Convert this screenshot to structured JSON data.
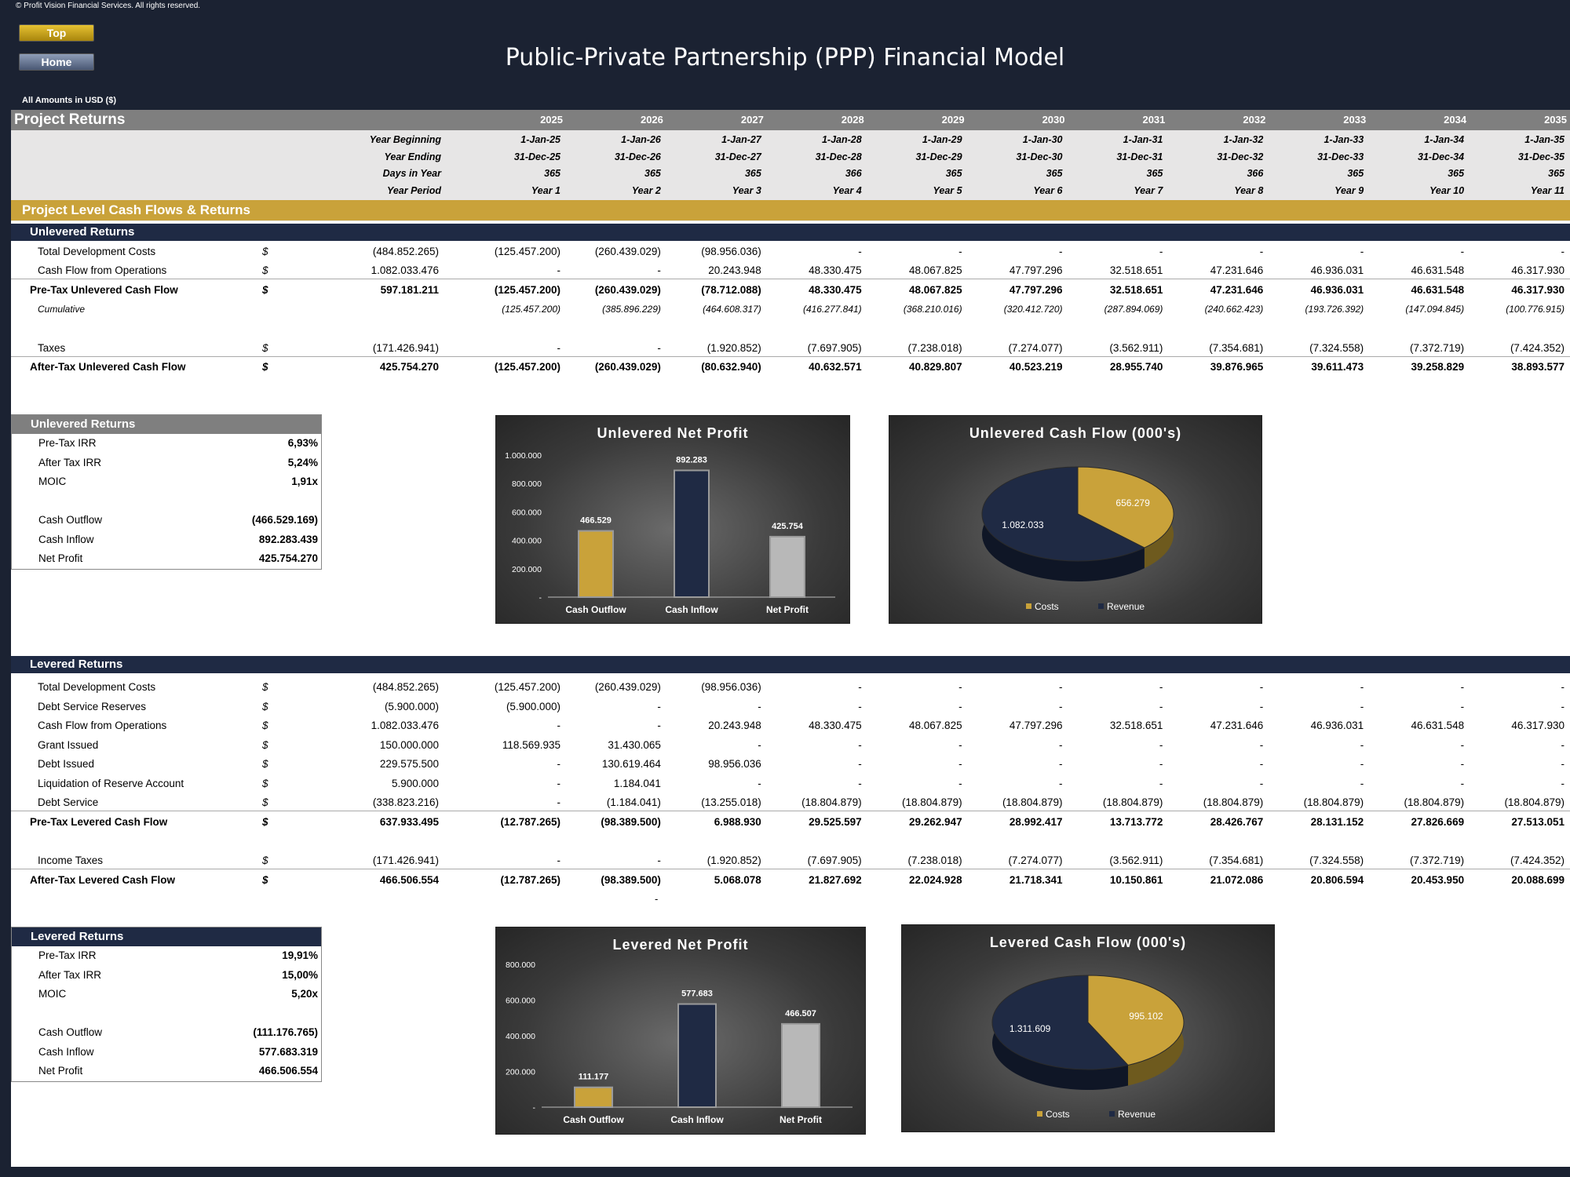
{
  "copyright": "© Profit Vision Financial Services. All rights reserved.",
  "nav": {
    "top_label": "Top",
    "home_label": "Home"
  },
  "title": "Public-Private Partnership (PPP) Financial Model",
  "amounts_note": "All Amounts in  USD ($)",
  "section_title": "Project Returns",
  "years": [
    "2025",
    "2026",
    "2027",
    "2028",
    "2029",
    "2030",
    "2031",
    "2032",
    "2033",
    "2034",
    "2035"
  ],
  "date_rows": [
    {
      "label": "Year Beginning",
      "values": [
        "1-Jan-25",
        "1-Jan-26",
        "1-Jan-27",
        "1-Jan-28",
        "1-Jan-29",
        "1-Jan-30",
        "1-Jan-31",
        "1-Jan-32",
        "1-Jan-33",
        "1-Jan-34",
        "1-Jan-35"
      ]
    },
    {
      "label": "Year Ending",
      "values": [
        "31-Dec-25",
        "31-Dec-26",
        "31-Dec-27",
        "31-Dec-28",
        "31-Dec-29",
        "31-Dec-30",
        "31-Dec-31",
        "31-Dec-32",
        "31-Dec-33",
        "31-Dec-34",
        "31-Dec-35"
      ]
    },
    {
      "label": "Days in Year",
      "values": [
        "365",
        "365",
        "365",
        "366",
        "365",
        "365",
        "365",
        "366",
        "365",
        "365",
        "365"
      ]
    },
    {
      "label": "Year Period",
      "values": [
        "Year 1",
        "Year 2",
        "Year 3",
        "Year 4",
        "Year 5",
        "Year 6",
        "Year 7",
        "Year 8",
        "Year 9",
        "Year 10",
        "Year 11"
      ]
    }
  ],
  "gold_title": "Project Level Cash Flows & Returns",
  "unlevered": {
    "title": "Unlevered Returns",
    "rows": [
      {
        "label": "Total Development Costs",
        "cur": "$",
        "total": "(484.852.265)",
        "values": [
          "(125.457.200)",
          "(260.439.029)",
          "(98.956.036)",
          "-",
          "-",
          "-",
          "-",
          "-",
          "-",
          "-",
          "-"
        ]
      },
      {
        "label": "Cash Flow from Operations",
        "cur": "$",
        "total": "1.082.033.476",
        "values": [
          "-",
          "-",
          "20.243.948",
          "48.330.475",
          "48.067.825",
          "47.797.296",
          "32.518.651",
          "47.231.646",
          "46.936.031",
          "46.631.548",
          "46.317.930"
        ]
      },
      {
        "label": "Pre-Tax Unlevered Cash Flow",
        "cur": "$",
        "total": "597.181.211",
        "values": [
          "(125.457.200)",
          "(260.439.029)",
          "(78.712.088)",
          "48.330.475",
          "48.067.825",
          "47.797.296",
          "32.518.651",
          "47.231.646",
          "46.936.031",
          "46.631.548",
          "46.317.930"
        ]
      },
      {
        "label": "Cumulative",
        "cur": "",
        "total": "",
        "values": [
          "(125.457.200)",
          "(385.896.229)",
          "(464.608.317)",
          "(416.277.841)",
          "(368.210.016)",
          "(320.412.720)",
          "(287.894.069)",
          "(240.662.423)",
          "(193.726.392)",
          "(147.094.845)",
          "(100.776.915)"
        ]
      },
      {
        "label": "Taxes",
        "cur": "$",
        "total": "(171.426.941)",
        "values": [
          "-",
          "-",
          "(1.920.852)",
          "(7.697.905)",
          "(7.238.018)",
          "(7.274.077)",
          "(3.562.911)",
          "(7.354.681)",
          "(7.324.558)",
          "(7.372.719)",
          "(7.424.352)"
        ]
      },
      {
        "label": "After-Tax Unlevered Cash Flow",
        "cur": "$",
        "total": "425.754.270",
        "values": [
          "(125.457.200)",
          "(260.439.029)",
          "(80.632.940)",
          "40.632.571",
          "40.829.807",
          "40.523.219",
          "28.955.740",
          "39.876.965",
          "39.611.473",
          "39.258.829",
          "38.893.577"
        ]
      }
    ],
    "summary": [
      {
        "label": "Pre-Tax IRR",
        "value": "6,93%"
      },
      {
        "label": "After Tax IRR",
        "value": "5,24%"
      },
      {
        "label": "MOIC",
        "value": "1,91x"
      },
      {
        "label": "Cash Outflow",
        "value": "(466.529.169)"
      },
      {
        "label": "Cash Inflow",
        "value": "892.283.439"
      },
      {
        "label": "Net Profit",
        "value": "425.754.270"
      }
    ]
  },
  "levered": {
    "title": "Levered Returns",
    "rows": [
      {
        "label": "Total Development Costs",
        "cur": "$",
        "total": "(484.852.265)",
        "values": [
          "(125.457.200)",
          "(260.439.029)",
          "(98.956.036)",
          "-",
          "-",
          "-",
          "-",
          "-",
          "-",
          "-",
          "-"
        ]
      },
      {
        "label": "Debt Service Reserves",
        "cur": "$",
        "total": "(5.900.000)",
        "values": [
          "(5.900.000)",
          "-",
          "-",
          "-",
          "-",
          "-",
          "-",
          "-",
          "-",
          "-",
          "-"
        ]
      },
      {
        "label": "Cash Flow from Operations",
        "cur": "$",
        "total": "1.082.033.476",
        "values": [
          "-",
          "-",
          "20.243.948",
          "48.330.475",
          "48.067.825",
          "47.797.296",
          "32.518.651",
          "47.231.646",
          "46.936.031",
          "46.631.548",
          "46.317.930"
        ]
      },
      {
        "label": "Grant Issued",
        "cur": "$",
        "total": "150.000.000",
        "values": [
          "118.569.935",
          "31.430.065",
          "-",
          "-",
          "-",
          "-",
          "-",
          "-",
          "-",
          "-",
          "-"
        ]
      },
      {
        "label": "Debt Issued",
        "cur": "$",
        "total": "229.575.500",
        "values": [
          "-",
          "130.619.464",
          "98.956.036",
          "-",
          "-",
          "-",
          "-",
          "-",
          "-",
          "-",
          "-"
        ]
      },
      {
        "label": "Liquidation of Reserve Account",
        "cur": "$",
        "total": "5.900.000",
        "values": [
          "-",
          "1.184.041",
          "-",
          "-",
          "-",
          "-",
          "-",
          "-",
          "-",
          "-",
          "-"
        ]
      },
      {
        "label": "Debt Service",
        "cur": "$",
        "total": "(338.823.216)",
        "values": [
          "-",
          "(1.184.041)",
          "(13.255.018)",
          "(18.804.879)",
          "(18.804.879)",
          "(18.804.879)",
          "(18.804.879)",
          "(18.804.879)",
          "(18.804.879)",
          "(18.804.879)",
          "(18.804.879)"
        ]
      },
      {
        "label": "Pre-Tax Levered Cash Flow",
        "cur": "$",
        "total": "637.933.495",
        "values": [
          "(12.787.265)",
          "(98.389.500)",
          "6.988.930",
          "29.525.597",
          "29.262.947",
          "28.992.417",
          "13.713.772",
          "28.426.767",
          "28.131.152",
          "27.826.669",
          "27.513.051"
        ]
      },
      {
        "label": "Income Taxes",
        "cur": "$",
        "total": "(171.426.941)",
        "values": [
          "-",
          "-",
          "(1.920.852)",
          "(7.697.905)",
          "(7.238.018)",
          "(7.274.077)",
          "(3.562.911)",
          "(7.354.681)",
          "(7.324.558)",
          "(7.372.719)",
          "(7.424.352)"
        ]
      },
      {
        "label": "After-Tax Levered Cash Flow",
        "cur": "$",
        "total": "466.506.554",
        "values": [
          "(12.787.265)",
          "(98.389.500)",
          "5.068.078",
          "21.827.692",
          "22.024.928",
          "21.718.341",
          "10.150.861",
          "21.072.086",
          "20.806.594",
          "20.453.950",
          "20.088.699"
        ]
      }
    ],
    "stray_dash": "-",
    "summary": [
      {
        "label": "Pre-Tax IRR",
        "value": "19,91%"
      },
      {
        "label": "After Tax IRR",
        "value": "15,00%"
      },
      {
        "label": "MOIC",
        "value": "5,20x"
      },
      {
        "label": "Cash Outflow",
        "value": "(111.176.765)"
      },
      {
        "label": "Cash Inflow",
        "value": "577.683.319"
      },
      {
        "label": "Net Profit",
        "value": "466.506.554"
      }
    ]
  },
  "colors": {
    "gold": "#c9a23a",
    "navy": "#1f2a44",
    "silver": "#b8b8b8",
    "dark": "#1b2232"
  },
  "chart_data": [
    {
      "type": "bar",
      "title": "Unlevered Net Profit",
      "categories": [
        "Cash Outflow",
        "Cash Inflow",
        "Net Profit"
      ],
      "values": [
        466.529,
        892.283,
        425.754
      ],
      "data_labels": [
        "466.529",
        "892.283",
        "425.754"
      ],
      "yticks": [
        "1.000.000",
        "800.000",
        "600.000",
        "400.000",
        "200.000",
        "-"
      ],
      "ylim": [
        0,
        1000
      ]
    },
    {
      "type": "pie",
      "title": "Unlevered Cash Flow (000's)",
      "labels": [
        "Costs",
        "Revenue"
      ],
      "values": [
        656.279,
        1082.033
      ],
      "data_labels": [
        "656.279",
        "1.082.033"
      ],
      "legend": "bottom"
    },
    {
      "type": "bar",
      "title": "Levered Net Profit",
      "categories": [
        "Cash Outflow",
        "Cash Inflow",
        "Net Profit"
      ],
      "values": [
        111.177,
        577.683,
        466.507
      ],
      "data_labels": [
        "111.177",
        "577.683",
        "466.507"
      ],
      "yticks": [
        "800.000",
        "600.000",
        "400.000",
        "200.000",
        "-"
      ],
      "ylim": [
        0,
        800
      ]
    },
    {
      "type": "pie",
      "title": "Levered Cash Flow (000's)",
      "labels": [
        "Costs",
        "Revenue"
      ],
      "values": [
        995.102,
        1311.609
      ],
      "data_labels": [
        "995.102",
        "1.311.609"
      ],
      "legend": "bottom"
    }
  ]
}
